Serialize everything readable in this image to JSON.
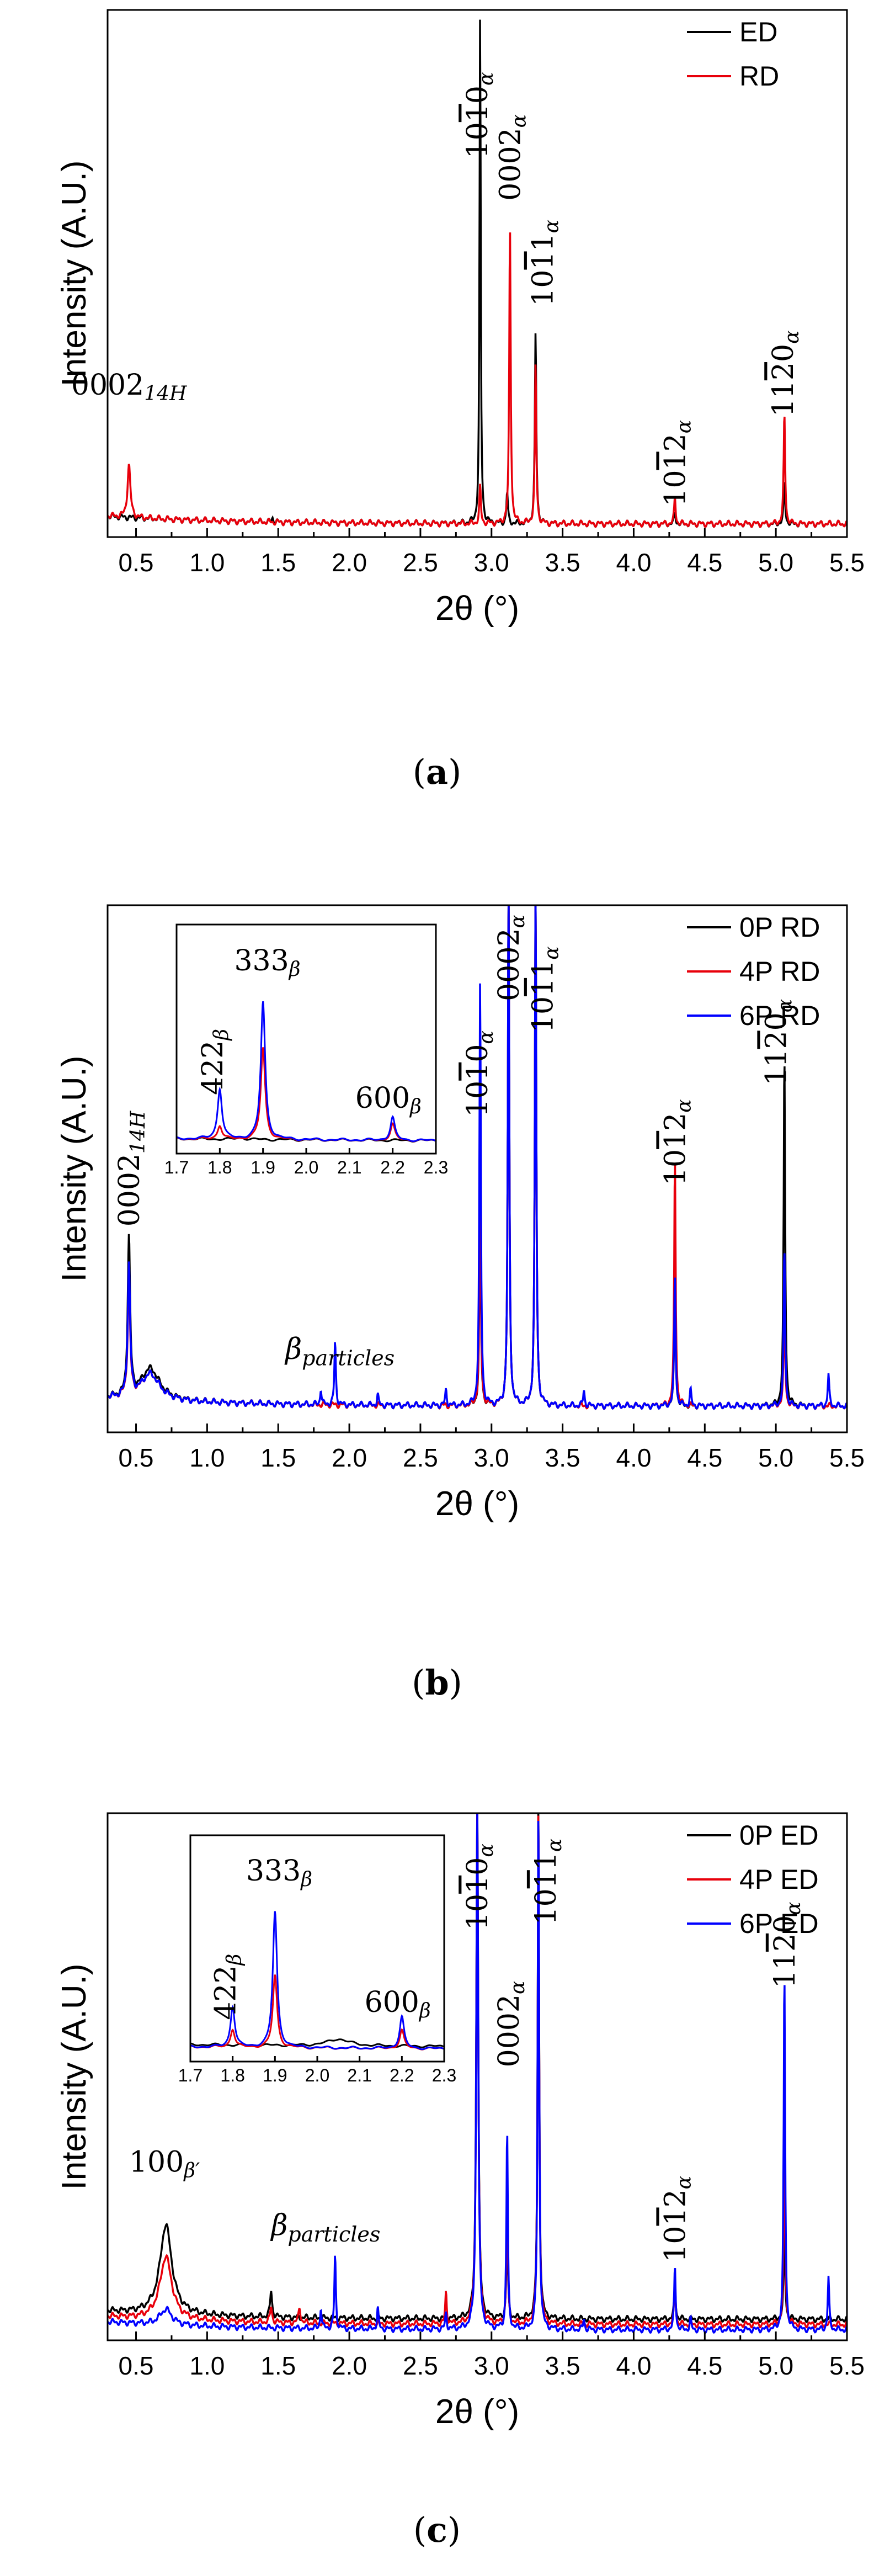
{
  "chart_data": [
    {
      "id": "a",
      "type": "line",
      "caption": "(a)",
      "xlabel": "2θ (°)",
      "ylabel": "Intensity (A.U.)",
      "xlim": [
        0.3,
        5.5
      ],
      "ylim": [
        0,
        100
      ],
      "xticks": [
        "0.5",
        "1.0",
        "1.5",
        "2.0",
        "2.5",
        "3.0",
        "3.5",
        "4.0",
        "4.5",
        "5.0",
        "5.5"
      ],
      "xtick_values": [
        0.5,
        1.0,
        1.5,
        2.0,
        2.5,
        3.0,
        3.5,
        4.0,
        4.5,
        5.0,
        5.5
      ],
      "series": [
        {
          "name": "ED",
          "color": "#000000",
          "baseline": 2.5,
          "peaks": [
            [
              1.46,
              0.8,
              0.006
            ],
            [
              2.92,
              96,
              0.005
            ],
            [
              3.11,
              6,
              0.006
            ],
            [
              3.31,
              36,
              0.006
            ],
            [
              4.29,
              2,
              0.006
            ],
            [
              5.06,
              8,
              0.006
            ]
          ]
        },
        {
          "name": "RD",
          "color": "#e8000b",
          "baseline": 2.5,
          "peaks": [
            [
              0.45,
              10,
              0.012
            ],
            [
              2.92,
              7,
              0.006
            ],
            [
              3.13,
              56,
              0.006
            ],
            [
              3.31,
              30,
              0.006
            ],
            [
              4.29,
              5,
              0.006
            ],
            [
              5.06,
              21,
              0.006
            ]
          ]
        }
      ],
      "annotations": [
        {
          "base": "0002",
          "sub": "14H",
          "x": 0.45,
          "y": 27
        },
        {
          "base": "1010",
          "sub": "α",
          "x": 2.9,
          "y": 80,
          "rotated": true
        },
        {
          "base": "0002",
          "sub": "α",
          "x": 3.13,
          "y": 72,
          "rotated": true
        },
        {
          "base": "1011",
          "sub": "α",
          "x": 3.36,
          "y": 52,
          "rotated": true
        },
        {
          "base": "1012",
          "sub": "α",
          "x": 4.29,
          "y": 14,
          "rotated": true
        },
        {
          "base": "1120",
          "sub": "α",
          "x": 5.05,
          "y": 31,
          "rotated": true
        }
      ]
    },
    {
      "id": "b",
      "type": "line",
      "caption": "(b)",
      "xlabel": "2θ (°)",
      "ylabel": "Intensity (A.U.)",
      "xlim": [
        0.3,
        5.5
      ],
      "ylim": [
        0,
        100
      ],
      "xticks": [
        "0.5",
        "1.0",
        "1.5",
        "2.0",
        "2.5",
        "3.0",
        "3.5",
        "4.0",
        "4.5",
        "5.0",
        "5.5"
      ],
      "xtick_values": [
        0.5,
        1.0,
        1.5,
        2.0,
        2.5,
        3.0,
        3.5,
        4.0,
        4.5,
        5.0,
        5.5
      ],
      "particles_label": "particles",
      "particles_pos": {
        "x": 1.55,
        "y": 14
      },
      "series": [
        {
          "name": "0P RD",
          "color": "#000000",
          "baseline": 5,
          "peaks": [
            [
              0.45,
              30,
              0.01
            ],
            [
              0.6,
              6,
              0.08
            ],
            [
              2.92,
              40,
              0.006
            ],
            [
              3.12,
              99,
              0.006
            ],
            [
              3.31,
              99,
              0.006
            ],
            [
              4.29,
              23,
              0.006
            ],
            [
              5.06,
              67,
              0.006
            ]
          ]
        },
        {
          "name": "4P RD",
          "color": "#e8000b",
          "baseline": 5,
          "peaks": [
            [
              0.45,
              22,
              0.01
            ],
            [
              0.6,
              5,
              0.08
            ],
            [
              2.92,
              45,
              0.006
            ],
            [
              3.12,
              99,
              0.006
            ],
            [
              3.31,
              99,
              0.006
            ],
            [
              4.29,
              47,
              0.006
            ],
            [
              5.06,
              20,
              0.006
            ]
          ]
        },
        {
          "name": "6P RD",
          "color": "#0000ff",
          "baseline": 5,
          "peaks": [
            [
              0.45,
              25,
              0.01
            ],
            [
              0.6,
              5,
              0.08
            ],
            [
              1.8,
              3,
              0.006
            ],
            [
              1.9,
              12,
              0.006
            ],
            [
              2.2,
              2,
              0.006
            ],
            [
              2.68,
              3,
              0.006
            ],
            [
              2.92,
              80,
              0.006
            ],
            [
              3.12,
              99,
              0.006
            ],
            [
              3.31,
              99,
              0.006
            ],
            [
              3.65,
              3,
              0.006
            ],
            [
              4.29,
              25,
              0.006
            ],
            [
              4.4,
              3,
              0.006
            ],
            [
              5.06,
              30,
              0.006
            ],
            [
              5.37,
              6,
              0.006
            ]
          ]
        }
      ],
      "annotations": [
        {
          "base": "0002",
          "sub": "14H",
          "x": 0.45,
          "y": 50,
          "rotated": true
        },
        {
          "base": "1010",
          "sub": "α",
          "x": 2.9,
          "y": 68,
          "rotated": true
        },
        {
          "base": "0002",
          "sub": "α",
          "x": 3.12,
          "y": 90,
          "rotated": true
        },
        {
          "base": "1011",
          "sub": "α",
          "x": 3.36,
          "y": 84,
          "rotated": true
        },
        {
          "base": "1012",
          "sub": "α",
          "x": 4.29,
          "y": 55,
          "rotated": true
        },
        {
          "base": "1120",
          "sub": "α",
          "x": 5.0,
          "y": 74,
          "rotated": true
        }
      ],
      "inset": {
        "xlim": [
          1.7,
          2.3
        ],
        "ylim": [
          0,
          100
        ],
        "xticks": [
          "1.7",
          "1.8",
          "1.9",
          "2.0",
          "2.1",
          "2.2",
          "2.3"
        ],
        "xtick_values": [
          1.7,
          1.8,
          1.9,
          2.0,
          2.1,
          2.2,
          2.3
        ],
        "series": [
          {
            "name": "0P RD",
            "color": "#000000",
            "baseline": 5,
            "peaks": [
              [
                1.85,
                0.8,
                0.01
              ]
            ]
          },
          {
            "name": "4P RD",
            "color": "#e8000b",
            "baseline": 5,
            "peaks": [
              [
                1.8,
                6,
                0.006
              ],
              [
                1.9,
                40,
                0.006
              ],
              [
                2.2,
                7,
                0.006
              ]
            ]
          },
          {
            "name": "6P RD",
            "color": "#0000ff",
            "baseline": 5,
            "peaks": [
              [
                1.8,
                22,
                0.006
              ],
              [
                1.9,
                60,
                0.006
              ],
              [
                2.2,
                10,
                0.006
              ]
            ]
          }
        ],
        "annotations": [
          {
            "base": "422",
            "sub": "β",
            "x": 1.79,
            "y": 40,
            "rotated": true
          },
          {
            "base": "333",
            "sub": "β",
            "x": 1.91,
            "y": 80,
            "rotated": false
          },
          {
            "base": "600",
            "sub": "β",
            "x": 2.19,
            "y": 20,
            "rotated": false
          }
        ]
      }
    },
    {
      "id": "c",
      "type": "line",
      "caption": "(c)",
      "xlabel": "2θ (°)",
      "ylabel": "Intensity (A.U.)",
      "xlim": [
        0.3,
        5.5
      ],
      "ylim": [
        0,
        100
      ],
      "xticks": [
        "0.5",
        "1.0",
        "1.5",
        "2.0",
        "2.5",
        "3.0",
        "3.5",
        "4.0",
        "4.5",
        "5.0",
        "5.5"
      ],
      "xtick_values": [
        0.5,
        1.0,
        1.5,
        2.0,
        2.5,
        3.0,
        3.5,
        4.0,
        4.5,
        5.0,
        5.5
      ],
      "particles_label": "particles",
      "particles_pos": {
        "x": 1.45,
        "y": 20
      },
      "series": [
        {
          "name": "0P ED",
          "color": "#000000",
          "baseline": 4,
          "peaks": [
            [
              0.71,
              17,
              0.05
            ],
            [
              1.45,
              5,
              0.008
            ],
            [
              2.9,
              99,
              0.008
            ],
            [
              3.11,
              18,
              0.006
            ],
            [
              3.33,
              99,
              0.006
            ],
            [
              4.29,
              7,
              0.006
            ],
            [
              5.06,
              18,
              0.006
            ]
          ]
        },
        {
          "name": "4P ED",
          "color": "#e8000b",
          "baseline": 3,
          "peaks": [
            [
              0.71,
              12,
              0.05
            ],
            [
              1.45,
              3,
              0.008
            ],
            [
              1.65,
              3,
              0.008
            ],
            [
              2.68,
              6,
              0.006
            ],
            [
              2.9,
              99,
              0.008
            ],
            [
              3.11,
              25,
              0.006
            ],
            [
              3.33,
              99,
              0.006
            ],
            [
              4.29,
              8,
              0.006
            ],
            [
              5.06,
              38,
              0.006
            ]
          ]
        },
        {
          "name": "6P ED",
          "color": "#0000ff",
          "baseline": 2,
          "peaks": [
            [
              0.71,
              3,
              0.05
            ],
            [
              1.8,
              4,
              0.006
            ],
            [
              1.9,
              14,
              0.006
            ],
            [
              2.2,
              4,
              0.006
            ],
            [
              2.68,
              3,
              0.006
            ],
            [
              2.9,
              99,
              0.008
            ],
            [
              3.11,
              38,
              0.006
            ],
            [
              3.33,
              99,
              0.006
            ],
            [
              3.65,
              2,
              0.006
            ],
            [
              4.29,
              12,
              0.006
            ],
            [
              4.4,
              2,
              0.006
            ],
            [
              5.06,
              68,
              0.006
            ],
            [
              5.37,
              10,
              0.006
            ]
          ]
        }
      ],
      "annotations": [
        {
          "base": "100",
          "sub": "β′",
          "x": 0.7,
          "y": 32,
          "rotated": false
        },
        {
          "base": "1010",
          "sub": "α",
          "x": 2.9,
          "y": 86,
          "rotated": true
        },
        {
          "base": "0002",
          "sub": "α",
          "x": 3.12,
          "y": 60,
          "rotated": true
        },
        {
          "base": "1011",
          "sub": "α",
          "x": 3.38,
          "y": 87,
          "rotated": true
        },
        {
          "base": "1012",
          "sub": "α",
          "x": 4.29,
          "y": 23,
          "rotated": true
        },
        {
          "base": "1120",
          "sub": "α",
          "x": 5.06,
          "y": 75,
          "rotated": true
        }
      ],
      "inset": {
        "xlim": [
          1.7,
          2.3
        ],
        "ylim": [
          0,
          100
        ],
        "xticks": [
          "1.7",
          "1.8",
          "1.9",
          "2.0",
          "2.1",
          "2.2",
          "2.3"
        ],
        "xtick_values": [
          1.7,
          1.8,
          1.9,
          2.0,
          2.1,
          2.2,
          2.3
        ],
        "series": [
          {
            "name": "0P ED",
            "color": "#000000",
            "baseline": 6,
            "peaks": [
              [
                2.05,
                3,
                0.03
              ]
            ]
          },
          {
            "name": "4P ED",
            "color": "#e8000b",
            "baseline": 5,
            "peaks": [
              [
                1.8,
                8,
                0.006
              ],
              [
                1.9,
                32,
                0.006
              ],
              [
                2.2,
                8,
                0.006
              ]
            ]
          },
          {
            "name": "6P ED",
            "color": "#0000ff",
            "baseline": 5,
            "peaks": [
              [
                1.8,
                18,
                0.006
              ],
              [
                1.9,
                60,
                0.006
              ],
              [
                2.2,
                14,
                0.006
              ]
            ]
          }
        ],
        "annotations": [
          {
            "base": "422",
            "sub": "β",
            "x": 1.79,
            "y": 33,
            "rotated": true
          },
          {
            "base": "333",
            "sub": "β",
            "x": 1.91,
            "y": 80,
            "rotated": false
          },
          {
            "base": "600",
            "sub": "β",
            "x": 2.19,
            "y": 22,
            "rotated": false
          }
        ]
      }
    }
  ]
}
